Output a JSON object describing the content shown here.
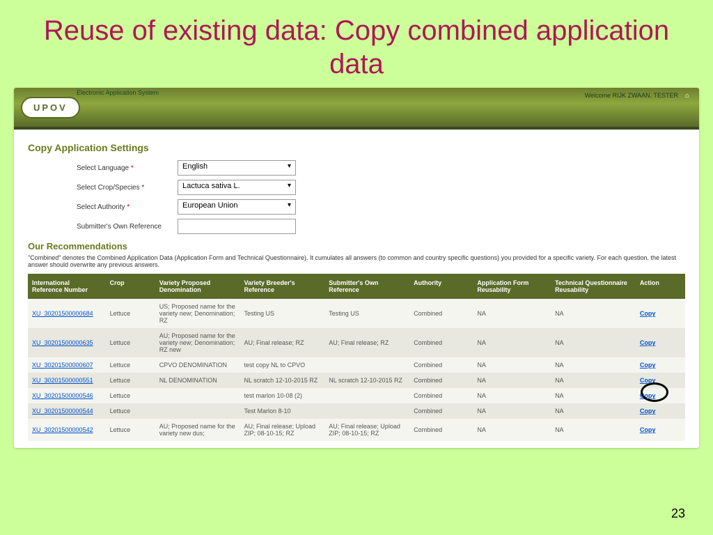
{
  "slide": {
    "title": "Reuse of existing data: Copy combined application data",
    "page_number": "23"
  },
  "app": {
    "subtitle": "Electronic Application System",
    "logo": "UPOV",
    "welcome": "Welcome RIJK ZWAAN, TESTER"
  },
  "settings": {
    "title": "Copy Application Settings",
    "fields": {
      "language": {
        "label": "Select Language",
        "value": "English"
      },
      "crop": {
        "label": "Select Crop/Species",
        "value": "Lactuca sativa L."
      },
      "authority": {
        "label": "Select Authority",
        "value": "European Union"
      },
      "own_ref": {
        "label": "Submitter's Own Reference",
        "value": ""
      }
    }
  },
  "recommendations": {
    "title": "Our Recommendations",
    "note": "\"Combined\" denotes the Combined Application Data (Application Form and Technical Questionnaire). It cumulates all answers (to common and country specific questions) you provided for a specific variety. For each question, the latest answer should overwrite any previous answers.",
    "columns": [
      "International Reference Number",
      "Crop",
      "Variety Proposed Denomination",
      "Variety Breeder's Reference",
      "Submitter's Own Reference",
      "Authority",
      "Application Form Reusability",
      "Technical Questionnaire Reusability",
      "Action"
    ],
    "rows": [
      {
        "ref": "XU_30201500000684",
        "crop": "Lettuce",
        "denom": "US; Proposed name for the variety new; Denomination; RZ",
        "breeder": "Testing US",
        "own": "Testing US",
        "auth": "Combined",
        "appf": "NA",
        "techq": "NA",
        "action": "Copy"
      },
      {
        "ref": "XU_30201500000635",
        "crop": "Lettuce",
        "denom": "AU; Proposed name for the variety new; Denomination; RZ new",
        "breeder": "AU; Final release; RZ",
        "own": "AU; Final release; RZ",
        "auth": "Combined",
        "appf": "NA",
        "techq": "NA",
        "action": "Copy"
      },
      {
        "ref": "XU_30201500000607",
        "crop": "Lettuce",
        "denom": "CPVO DENOMINATION",
        "breeder": "test copy NL to CPVO",
        "own": "",
        "auth": "Combined",
        "appf": "NA",
        "techq": "NA",
        "action": "Copy"
      },
      {
        "ref": "XU_30201500000551",
        "crop": "Lettuce",
        "denom": "NL DENOMINATION",
        "breeder": "NL scratch 12-10-2015 RZ",
        "own": "NL scratch 12-10-2015 RZ",
        "auth": "Combined",
        "appf": "NA",
        "techq": "NA",
        "action": "Copy"
      },
      {
        "ref": "XU_30201500000546",
        "crop": "Lettuce",
        "denom": "",
        "breeder": "test marlon 10-08 (2)",
        "own": "",
        "auth": "Combined",
        "appf": "NA",
        "techq": "NA",
        "action": "Copy"
      },
      {
        "ref": "XU_30201500000544",
        "crop": "Lettuce",
        "denom": "",
        "breeder": "Test Marlon 8-10",
        "own": "",
        "auth": "Combined",
        "appf": "NA",
        "techq": "NA",
        "action": "Copy"
      },
      {
        "ref": "XU_30201500000542",
        "crop": "Lettuce",
        "denom": "AU; Proposed name for the variety new dus;",
        "breeder": "AU; Final release; Upload ZIP; 08-10-15; RZ",
        "own": "AU; Final release; Upload ZIP; 08-10-15; RZ",
        "auth": "Combined",
        "appf": "NA",
        "techq": "NA",
        "action": "Copy"
      }
    ]
  },
  "colors": {
    "slide_bg": "#ccff99",
    "title_color": "#b01657",
    "header_olive": "#6a7a1c",
    "table_header": "#5a6a28",
    "link": "#0052cc"
  }
}
